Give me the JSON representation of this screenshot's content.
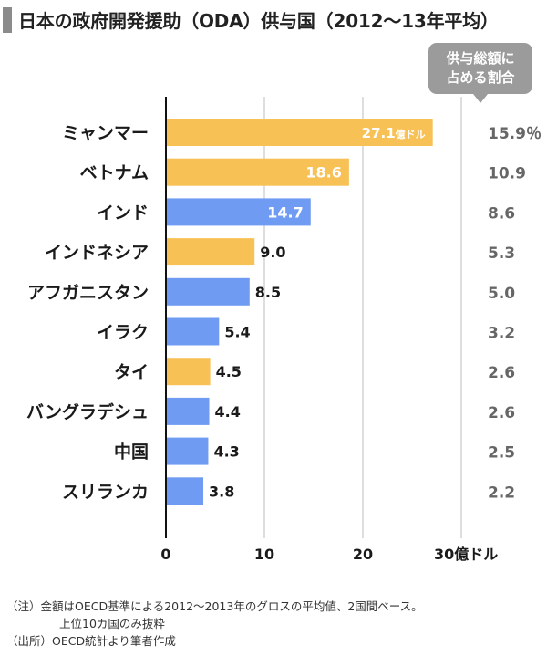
{
  "title": "日本の政府開発援助（ODA）供与国（2012〜13年平均）",
  "share_header": [
    "供与総額に",
    "占める割合"
  ],
  "colors": {
    "myanmar_vietnam_indonesia_thailand": "#f8c156",
    "others": "#6f9cf2",
    "grid": "#c8c8c8",
    "axis": "#111111",
    "share_text": "#666666",
    "badge": "#9b9b9b"
  },
  "chart_data": {
    "type": "bar",
    "orientation": "horizontal",
    "categories": [
      "ミャンマー",
      "ベトナム",
      "インド",
      "インドネシア",
      "アフガニスタン",
      "イラク",
      "タイ",
      "バングラデシュ",
      "中国",
      "スリランカ"
    ],
    "values": [
      27.1,
      18.6,
      14.7,
      9.0,
      8.5,
      5.4,
      4.5,
      4.4,
      4.3,
      3.8
    ],
    "value_labels": [
      "27.1",
      "18.6",
      "14.7",
      "9.0",
      "8.5",
      "5.4",
      "4.5",
      "4.4",
      "4.3",
      "3.8"
    ],
    "first_value_unit": "億ドル",
    "bar_colors": [
      "#f8c156",
      "#f8c156",
      "#6f9cf2",
      "#f8c156",
      "#6f9cf2",
      "#6f9cf2",
      "#f8c156",
      "#6f9cf2",
      "#6f9cf2",
      "#6f9cf2"
    ],
    "share_percent": [
      "15.9％",
      "10.9",
      "8.6",
      "5.3",
      "5.0",
      "3.2",
      "2.6",
      "2.6",
      "2.5",
      "2.2"
    ],
    "x_ticks": [
      "0",
      "10",
      "20",
      "30億ドル"
    ],
    "xlim": [
      0,
      30
    ],
    "grid": true
  },
  "notes": [
    "（注）金額はOECD基準による2012〜2013年のグロスの平均値、2国間ベース。",
    "上位10カ国のみ抜粋",
    "（出所）OECD統計より筆者作成"
  ]
}
